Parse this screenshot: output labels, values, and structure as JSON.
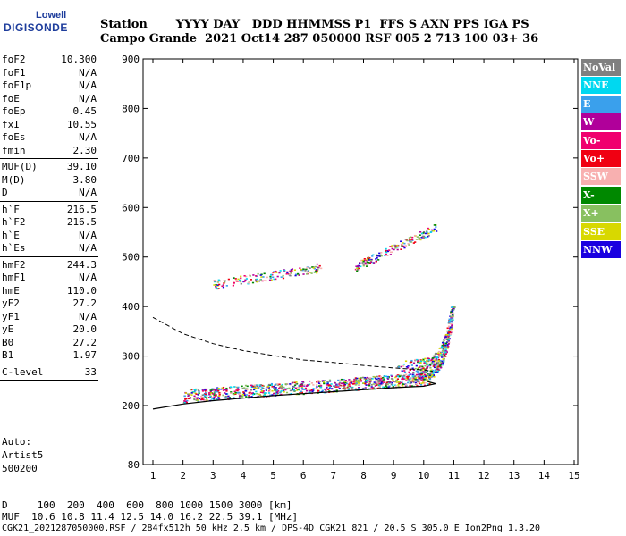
{
  "logo": {
    "top": "Lowell",
    "bottom": "DIGISONDE"
  },
  "header": {
    "line1": "Station       YYYY DAY   DDD HHMMSS P1  FFS S AXN PPS IGA PS",
    "line2": "Campo Grande  2021 Oct14 287 050000 RSF 005 2 713 100 03+ 36"
  },
  "params": [
    {
      "k": "foF2",
      "v": "10.300"
    },
    {
      "k": "foF1",
      "v": "N/A"
    },
    {
      "k": "foF1p",
      "v": "N/A"
    },
    {
      "k": "foE",
      "v": "N/A"
    },
    {
      "k": "foEp",
      "v": "0.45"
    },
    {
      "k": "fxI",
      "v": "10.55"
    },
    {
      "k": "foEs",
      "v": "N/A"
    },
    {
      "k": "fmin",
      "v": "2.30"
    },
    {
      "k": "MUF(D)",
      "v": "39.10"
    },
    {
      "k": "M(D)",
      "v": "3.80"
    },
    {
      "k": "D",
      "v": "N/A"
    },
    {
      "k": "h`F",
      "v": "216.5"
    },
    {
      "k": "h`F2",
      "v": "216.5"
    },
    {
      "k": "h`E",
      "v": "N/A"
    },
    {
      "k": "h`Es",
      "v": "N/A"
    },
    {
      "k": "hmF2",
      "v": "244.3"
    },
    {
      "k": "hmF1",
      "v": "N/A"
    },
    {
      "k": "hmE",
      "v": "110.0"
    },
    {
      "k": "yF2",
      "v": "27.2"
    },
    {
      "k": "yF1",
      "v": "N/A"
    },
    {
      "k": "yE",
      "v": "20.0"
    },
    {
      "k": "B0",
      "v": "27.2"
    },
    {
      "k": "B1",
      "v": "1.97"
    },
    {
      "k": "C-level",
      "v": "33"
    }
  ],
  "auto": {
    "line1": "Auto:",
    "line2": "Artist5",
    "line3": "500200"
  },
  "legend": [
    {
      "label": "NoVal",
      "color": "#808080"
    },
    {
      "label": "NNE",
      "color": "#00d8f0"
    },
    {
      "label": "E",
      "color": "#3aa0ec"
    },
    {
      "label": "W",
      "color": "#b0009a"
    },
    {
      "label": "Vo-",
      "color": "#f0006e"
    },
    {
      "label": "Vo+",
      "color": "#f00012"
    },
    {
      "label": "SSW",
      "color": "#f8b0b0"
    },
    {
      "label": "X-",
      "color": "#008800"
    },
    {
      "label": "X+",
      "color": "#88c060"
    },
    {
      "label": "SSE",
      "color": "#d8d800"
    },
    {
      "label": "NNW",
      "color": "#1a00e0"
    }
  ],
  "footer": {
    "line1": "D     100  200  400  600  800 1000 1500 3000 [km]",
    "line2": "MUF  10.6 10.8 11.4 12.5 14.0 16.2 22.5 39.1 [MHz]",
    "line3": "CGK21_2021287050000.RSF / 284fx512h 50 kHz 2.5 km / DPS-4D CGK21 821 / 20.5 S 305.0 E Ion2Png 1.3.20"
  },
  "chart_data": {
    "type": "scatter",
    "xlim": [
      1,
      15
    ],
    "ylim": [
      80,
      900
    ],
    "x_ticks": [
      1,
      2,
      3,
      4,
      5,
      6,
      7,
      8,
      9,
      10,
      11,
      12,
      13,
      14,
      15
    ],
    "y_ticks": [
      80,
      200,
      300,
      400,
      500,
      600,
      700,
      800,
      900
    ],
    "grid": false,
    "traces": {
      "solid_profile": [
        [
          1.0,
          193
        ],
        [
          2.0,
          203
        ],
        [
          3.0,
          210
        ],
        [
          4.0,
          215
        ],
        [
          5.0,
          220
        ],
        [
          6.0,
          224
        ],
        [
          7.0,
          228
        ],
        [
          8.0,
          232
        ],
        [
          9.0,
          236
        ],
        [
          10.0,
          239
        ],
        [
          10.4,
          244
        ],
        [
          10.1,
          249
        ]
      ],
      "dashed_profile": [
        [
          1.0,
          378
        ],
        [
          2.0,
          345
        ],
        [
          3.0,
          325
        ],
        [
          4.0,
          311
        ],
        [
          5.0,
          301
        ],
        [
          6.0,
          292
        ],
        [
          7.0,
          287
        ],
        [
          8.0,
          281
        ],
        [
          9.0,
          276
        ],
        [
          10.0,
          272
        ],
        [
          10.3,
          269
        ]
      ]
    },
    "echo_groups": [
      {
        "x": [
          2.0,
          10.2
        ],
        "y": [
          215,
          250
        ],
        "curve": "low"
      },
      {
        "x": [
          9.0,
          11.0
        ],
        "y": [
          250,
          400
        ],
        "curve": "cusp"
      },
      {
        "x": [
          3.0,
          6.6
        ],
        "y": [
          445,
          480
        ],
        "curve": "band"
      },
      {
        "x": [
          7.7,
          10.4
        ],
        "y": [
          480,
          560
        ],
        "curve": "band"
      }
    ]
  }
}
